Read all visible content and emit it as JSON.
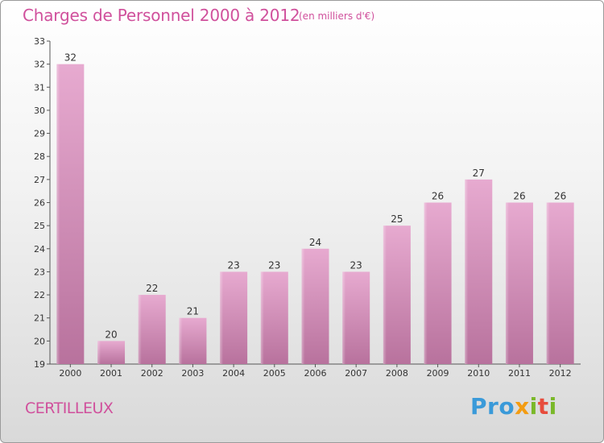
{
  "chart_data": {
    "type": "bar",
    "title": "Charges de Personnel 2000 à 2012",
    "unit": "(en milliers d'€)",
    "categories": [
      "2000",
      "2001",
      "2002",
      "2003",
      "2004",
      "2005",
      "2006",
      "2007",
      "2008",
      "2009",
      "2010",
      "2011",
      "2012"
    ],
    "values": [
      32,
      20,
      22,
      21,
      23,
      23,
      24,
      23,
      25,
      26,
      27,
      26,
      26
    ],
    "ylim": [
      19,
      33
    ],
    "yticks": [
      19,
      20,
      21,
      22,
      23,
      24,
      25,
      26,
      27,
      28,
      29,
      30,
      31,
      32,
      33
    ],
    "grid": false,
    "bar_color": "#d98bb9",
    "xlabel": "",
    "ylabel": ""
  },
  "footer": {
    "place": "CERTILLEUX",
    "logo": {
      "p1": "Pro",
      "p2": "x",
      "p3": "i",
      "p4": "t",
      "p5": "i"
    }
  }
}
